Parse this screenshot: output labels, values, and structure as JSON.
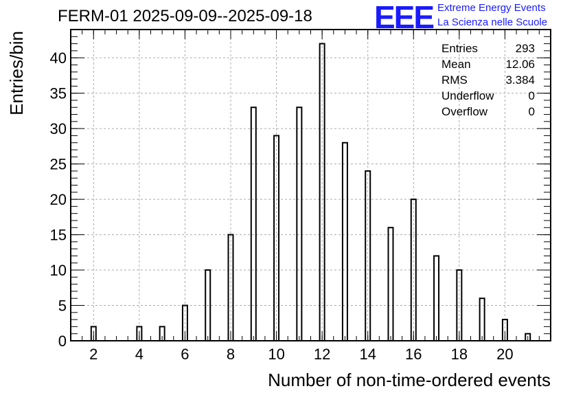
{
  "chart_data": {
    "type": "bar",
    "title": "FERM-01 2025-09-09--2025-09-18",
    "xlabel": "Number of non-time-ordered events",
    "ylabel": "Entries/bin",
    "xlim": [
      1,
      22
    ],
    "ylim": [
      0,
      44
    ],
    "x_ticks": [
      "2",
      "4",
      "6",
      "8",
      "10",
      "12",
      "14",
      "16",
      "18",
      "20"
    ],
    "y_ticks": [
      "0",
      "5",
      "10",
      "15",
      "20",
      "25",
      "30",
      "35",
      "40"
    ],
    "grid": true,
    "x": [
      2,
      4,
      5,
      6,
      7,
      8,
      9,
      10,
      11,
      12,
      13,
      14,
      15,
      16,
      17,
      18,
      19,
      20,
      21
    ],
    "values": [
      2,
      2,
      2,
      5,
      10,
      15,
      33,
      29,
      33,
      42,
      28,
      24,
      16,
      20,
      12,
      10,
      6,
      3,
      1
    ]
  },
  "stats": {
    "rows": [
      {
        "label": "Entries",
        "value": "293"
      },
      {
        "label": "Mean",
        "value": "12.06"
      },
      {
        "label": "RMS",
        "value": "3.384"
      },
      {
        "label": "Underflow",
        "value": "0"
      },
      {
        "label": "Overflow",
        "value": "0"
      }
    ]
  },
  "logo": {
    "mark": "EEE",
    "line1": "Extreme Energy Events",
    "line2": "La Scienza nelle Scuole",
    "color": "#1a1aff"
  }
}
